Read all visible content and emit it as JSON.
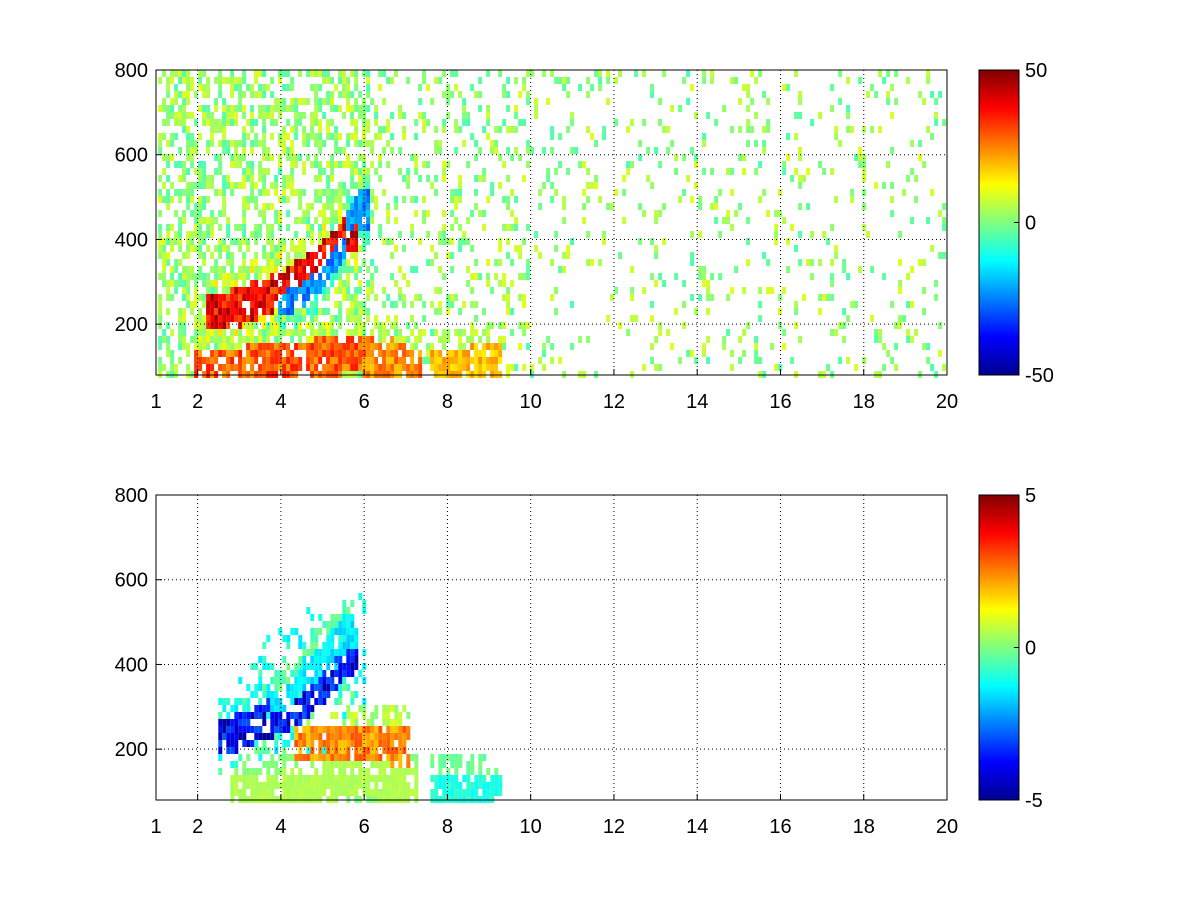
{
  "chart_data": [
    {
      "type": "heatmap",
      "title": "",
      "xlabel": "",
      "ylabel": "",
      "xlim": [
        1,
        20
      ],
      "ylim": [
        80,
        800
      ],
      "x_ticks": [
        1,
        2,
        4,
        6,
        8,
        10,
        12,
        14,
        16,
        18,
        20
      ],
      "x_tick_labels": [
        "1",
        "2",
        "4",
        "6",
        "8",
        "10",
        "12",
        "14",
        "16",
        "18",
        "20"
      ],
      "y_ticks": [
        200,
        400,
        600,
        800
      ],
      "y_tick_labels": [
        "200",
        "400",
        "600",
        "800"
      ],
      "grid": true,
      "colormap": "jet",
      "clim": [
        -50,
        50
      ],
      "colorbar_ticks": [
        -50,
        0,
        50
      ],
      "colorbar_tick_labels": [
        "-50",
        "0",
        "50"
      ],
      "data_extent_x": [
        1.05,
        19.95
      ],
      "features": [
        {
          "name": "rising ridge (positive)",
          "x": [
            2.5,
            3.0,
            3.5,
            4.0,
            4.5,
            5.0,
            5.5
          ],
          "y": [
            235,
            250,
            270,
            290,
            320,
            360,
            420
          ],
          "value": 40
        },
        {
          "name": "rising ridge (negative)",
          "x": [
            4.2,
            4.6,
            5.0,
            5.4,
            5.8
          ],
          "y": [
            280,
            300,
            340,
            400,
            480
          ],
          "value": -25
        },
        {
          "name": "lower band",
          "x": [
            2.2,
            3.0,
            4.0,
            5.0,
            6.0
          ],
          "y": [
            100,
            110,
            120,
            130,
            140
          ],
          "value": 30
        },
        {
          "name": "low cluster",
          "x": [
            6.2,
            6.6,
            7.0
          ],
          "y": [
            110,
            130,
            110
          ],
          "value": 25
        },
        {
          "name": "low cluster",
          "x": [
            7.8,
            8.4,
            9.0
          ],
          "y": [
            100,
            110,
            120
          ],
          "value": 20
        }
      ]
    },
    {
      "type": "heatmap",
      "title": "",
      "xlabel": "",
      "ylabel": "",
      "xlim": [
        1,
        20
      ],
      "ylim": [
        80,
        800
      ],
      "x_ticks": [
        1,
        2,
        4,
        6,
        8,
        10,
        12,
        14,
        16,
        18,
        20
      ],
      "x_tick_labels": [
        "1",
        "2",
        "4",
        "6",
        "8",
        "10",
        "12",
        "14",
        "16",
        "18",
        "20"
      ],
      "y_ticks": [
        200,
        400,
        600,
        800
      ],
      "y_tick_labels": [
        "200",
        "400",
        "600",
        "800"
      ],
      "grid": true,
      "colormap": "jet",
      "clim": [
        -5,
        5
      ],
      "colorbar_ticks": [
        -5,
        0,
        5
      ],
      "colorbar_tick_labels": [
        "-5",
        "0",
        "5"
      ],
      "data_extent_x": [
        2.4,
        9.6
      ],
      "features": [
        {
          "name": "rising ridge (negative)",
          "x": [
            2.7,
            3.0,
            3.5,
            4.0,
            4.5,
            5.0,
            5.5
          ],
          "y": [
            235,
            250,
            270,
            290,
            320,
            360,
            420
          ],
          "value": -4
        },
        {
          "name": "broad ridge region",
          "x": [
            4.0,
            4.5,
            5.0,
            5.5
          ],
          "y": [
            300,
            360,
            420,
            480
          ],
          "value": -1.5
        },
        {
          "name": "positive band",
          "x": [
            4.6,
            5.2,
            6.0,
            6.8
          ],
          "y": [
            225,
            225,
            220,
            215
          ],
          "value": 2.5
        },
        {
          "name": "lower band",
          "x": [
            3.0,
            4.0,
            5.0,
            6.0,
            7.0
          ],
          "y": [
            100,
            110,
            130,
            140,
            120
          ],
          "value": 0.5
        },
        {
          "name": "low cluster",
          "x": [
            7.8,
            8.4,
            9.0
          ],
          "y": [
            100,
            110,
            110
          ],
          "value": -1
        }
      ]
    }
  ]
}
